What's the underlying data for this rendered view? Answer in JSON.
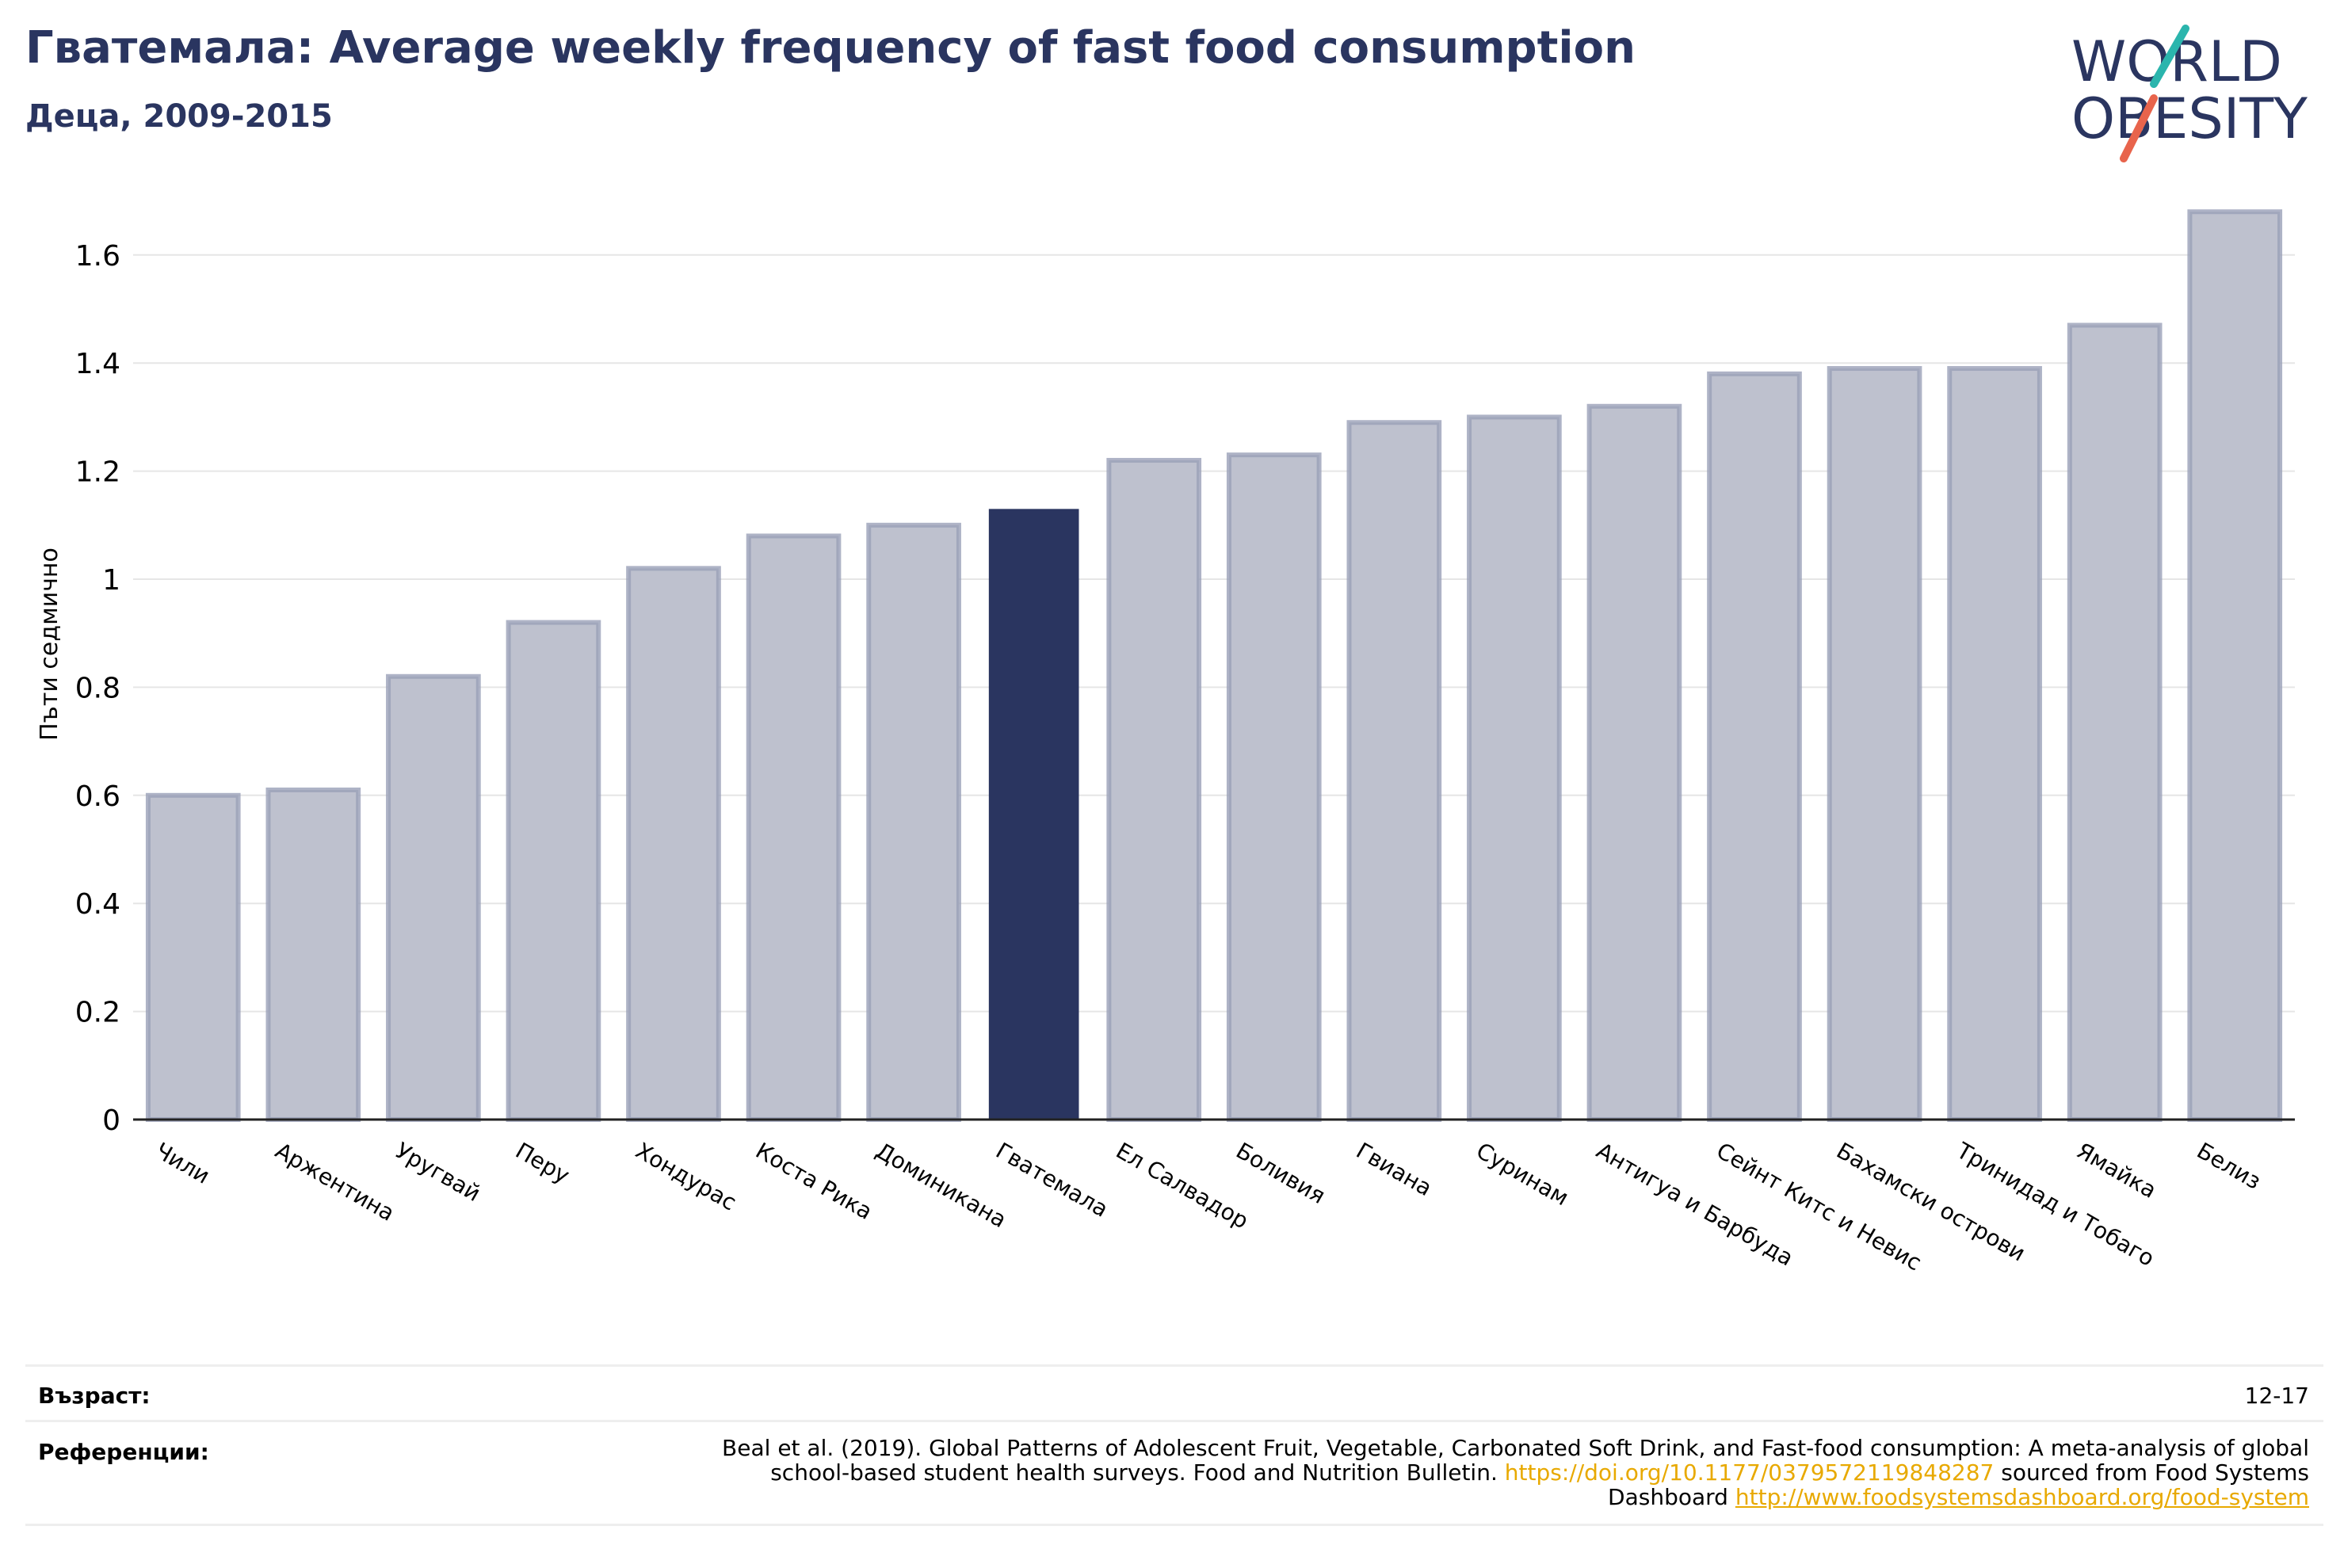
{
  "header": {
    "title": "Гватемала: Average weekly frequency of fast food consumption",
    "subtitle": "Деца, 2009-2015"
  },
  "logo": {
    "line1": "WORLD",
    "line2": "OBESITY"
  },
  "chart_data": {
    "type": "bar",
    "ylabel": "Пъти седмично",
    "ylim": [
      0,
      1.7
    ],
    "yticks": [
      0,
      0.2,
      0.4,
      0.6,
      0.8,
      1,
      1.2,
      1.4,
      1.6
    ],
    "ytick_labels": [
      "0",
      "0.2",
      "0.4",
      "0.6",
      "0.8",
      "1",
      "1.2",
      "1.4",
      "1.6"
    ],
    "grid": true,
    "highlight_category": "Гватемала",
    "colors": {
      "bar": "#bec1ce",
      "bar_edge": "#9aa0b8",
      "highlight": "#2a3560",
      "grid": "#e6e6e6",
      "axis": "#222222"
    },
    "categories": [
      "Чили",
      "Аржентина",
      "Уругвай",
      "Перу",
      "Хондурас",
      "Коста Рика",
      "Доминикана",
      "Гватемала",
      "Ел Салвадор",
      "Боливия",
      "Гвиана",
      "Суринам",
      "Антигуа и Барбуда",
      "Сейнт Китс и Невис",
      "Бахамски острови",
      "Тринидад и Тобаго",
      "Ямайка",
      "Белиз"
    ],
    "values": [
      0.6,
      0.61,
      0.82,
      0.92,
      1.02,
      1.08,
      1.1,
      1.13,
      1.22,
      1.23,
      1.29,
      1.3,
      1.32,
      1.38,
      1.39,
      1.39,
      1.47,
      1.68
    ]
  },
  "meta": {
    "age_label": "Възраст:",
    "age_value": "12-17",
    "ref_label": "Референции:",
    "ref_text_1": "Beal et al. (2019). Global Patterns of Adolescent Fruit, Vegetable, Carbonated Soft Drink, and Fast-food consumption: A meta-analysis of global school-based student health surveys. Food and Nutrition Bulletin.",
    "ref_link_1": "https://doi.org/10.1177/0379572119848287",
    "ref_text_2": "sourced from Food Systems Dashboard",
    "ref_link_2": "http://www.foodsystemsdashboard.org/food-system"
  }
}
